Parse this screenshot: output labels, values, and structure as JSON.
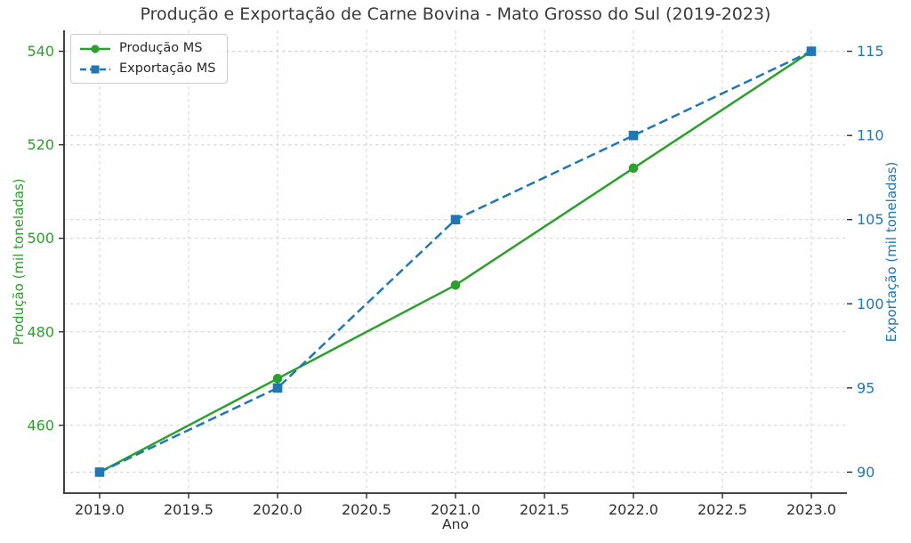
{
  "chart_data": {
    "type": "line",
    "title": "Produção e Exportação de Carne Bovina - Mato Grosso do Sul (2019-2023)",
    "xlabel": "Ano",
    "ylabel_left": "Produção (mil toneladas)",
    "ylabel_right": "Exportação (mil toneladas)",
    "x": [
      2019,
      2020,
      2021,
      2022,
      2023
    ],
    "series": [
      {
        "name": "Produção MS",
        "axis": "left",
        "values": [
          450,
          470,
          490,
          515,
          540
        ],
        "color": "#2ca02c",
        "line": "solid",
        "marker": "circle"
      },
      {
        "name": "Exportação MS",
        "axis": "right",
        "values": [
          90,
          95,
          105,
          110,
          115
        ],
        "color": "#1f77b4",
        "line": "dashed",
        "marker": "square"
      }
    ],
    "xlim": [
      2018.8,
      2023.2
    ],
    "ylim_left": [
      445.5,
      544.5
    ],
    "ylim_right": [
      88.75,
      116.25
    ],
    "x_tick_values": [
      2019.0,
      2019.5,
      2020.0,
      2020.5,
      2021.0,
      2021.5,
      2022.0,
      2022.5,
      2023.0
    ],
    "x_tick_labels": [
      "2019.0",
      "2019.5",
      "2020.0",
      "2020.5",
      "2021.0",
      "2021.5",
      "2022.0",
      "2022.5",
      "2023.0"
    ],
    "left_ticks": [
      460,
      480,
      500,
      520,
      540
    ],
    "right_ticks": [
      90,
      95,
      100,
      105,
      110,
      115
    ],
    "grid": true,
    "legend_position": "upper left",
    "colors": {
      "grid": "#d0d0d0",
      "axis": "#2e2e2e",
      "title": "#3a3a3a",
      "legend_border": "#cccccc"
    }
  }
}
